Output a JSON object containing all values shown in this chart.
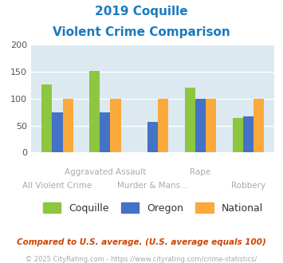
{
  "title_line1": "2019 Coquille",
  "title_line2": "Violent Crime Comparison",
  "title_color": "#1a7abf",
  "categories": [
    "All Violent Crime",
    "Aggravated Assault",
    "Murder & Mans...",
    "Rape",
    "Robbery"
  ],
  "label_row1": [
    "",
    "Aggravated Assault",
    "",
    "Rape",
    ""
  ],
  "label_row2": [
    "All Violent Crime",
    "",
    "Murder & Mans...",
    "",
    "Robbery"
  ],
  "series": {
    "Coquille": [
      126,
      152,
      0,
      120,
      64
    ],
    "Oregon": [
      75,
      74,
      57,
      100,
      67
    ],
    "National": [
      100,
      100,
      100,
      100,
      100
    ]
  },
  "colors": {
    "Coquille": "#8dc63f",
    "Oregon": "#4472c4",
    "National": "#faa93a"
  },
  "ylim": [
    0,
    200
  ],
  "yticks": [
    0,
    50,
    100,
    150,
    200
  ],
  "plot_bg": "#dce9f0",
  "grid_color": "#ffffff",
  "fig_bg": "#ffffff",
  "label_color": "#aaaaaa",
  "footer_text": "Compared to U.S. average. (U.S. average equals 100)",
  "footer_color": "#cc4400",
  "copyright_text": "© 2025 CityRating.com - https://www.cityrating.com/crime-statistics/",
  "copyright_color": "#aaaaaa",
  "bar_width": 0.22
}
